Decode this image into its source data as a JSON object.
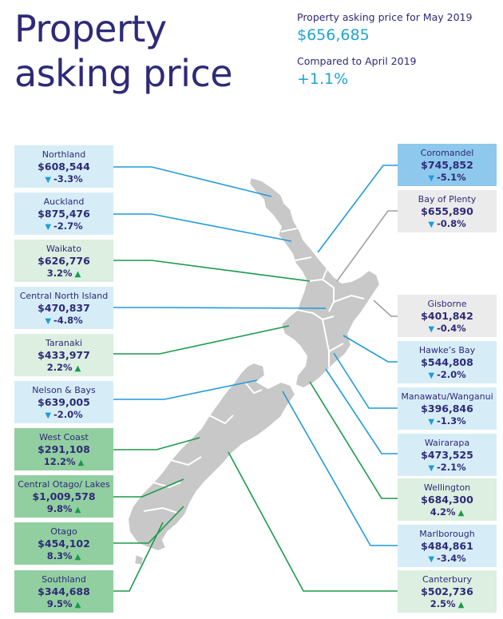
{
  "title": {
    "line1": "Property",
    "line2": "asking price"
  },
  "summary": {
    "label1": "Property asking price for May 2019",
    "value1": "$656,685",
    "label2": "Compared to April 2019",
    "value2": "+1.1%"
  },
  "colors": {
    "title": "#2e2a78",
    "accent": "#1fa3d0",
    "down_arrow": "#1f9cd8",
    "up_arrow": "#1a9a4c",
    "line_blue": "#1f9cd8",
    "line_green": "#1a9a4c",
    "line_gray": "#a0a0a0",
    "map_fill": "#c8c8c8"
  },
  "regions": {
    "northland": {
      "name": "Northland",
      "price": "$608,544",
      "change": "-3.3%",
      "direction": "down"
    },
    "auckland": {
      "name": "Auckland",
      "price": "$875,476",
      "change": "-2.7%",
      "direction": "down"
    },
    "waikato": {
      "name": "Waikato",
      "price": "$626,776",
      "change": "3.2%",
      "direction": "up"
    },
    "central_north_island": {
      "name": "Central North Island",
      "price": "$470,837",
      "change": "-4.8%",
      "direction": "down"
    },
    "taranaki": {
      "name": "Taranaki",
      "price": "$433,977",
      "change": "2.2%",
      "direction": "up"
    },
    "nelson_bays": {
      "name": "Nelson & Bays",
      "price": "$639,005",
      "change": "-2.0%",
      "direction": "down"
    },
    "west_coast": {
      "name": "West Coast",
      "price": "$291,108",
      "change": "12.2%",
      "direction": "up"
    },
    "central_otago": {
      "name": "Central Otago/ Lakes",
      "price": "$1,009,578",
      "change": "9.8%",
      "direction": "up"
    },
    "otago": {
      "name": "Otago",
      "price": "$454,102",
      "change": "8.3%",
      "direction": "up"
    },
    "southland": {
      "name": "Southland",
      "price": "$344,688",
      "change": "9.5%",
      "direction": "up"
    },
    "coromandel": {
      "name": "Coromandel",
      "price": "$745,852",
      "change": "-5.1%",
      "direction": "down"
    },
    "bay_of_plenty": {
      "name": "Bay of Plenty",
      "price": "$655,890",
      "change": "-0.8%",
      "direction": "down"
    },
    "gisborne": {
      "name": "Gisborne",
      "price": "$401,842",
      "change": "-0.4%",
      "direction": "down"
    },
    "hawkes_bay": {
      "name": "Hawke’s Bay",
      "price": "$544,808",
      "change": "-2.0%",
      "direction": "down"
    },
    "manawatu": {
      "name": "Manawatu/Wanganui",
      "price": "$396,846",
      "change": "-1.3%",
      "direction": "down"
    },
    "wairarapa": {
      "name": "Wairarapa",
      "price": "$473,525",
      "change": "-2.1%",
      "direction": "down"
    },
    "wellington": {
      "name": "Wellington",
      "price": "$684,300",
      "change": "4.2%",
      "direction": "up"
    },
    "marlborough": {
      "name": "Marlborough",
      "price": "$484,861",
      "change": "-3.4%",
      "direction": "down"
    },
    "canterbury": {
      "name": "Canterbury",
      "price": "$502,736",
      "change": "2.5%",
      "direction": "up"
    }
  }
}
